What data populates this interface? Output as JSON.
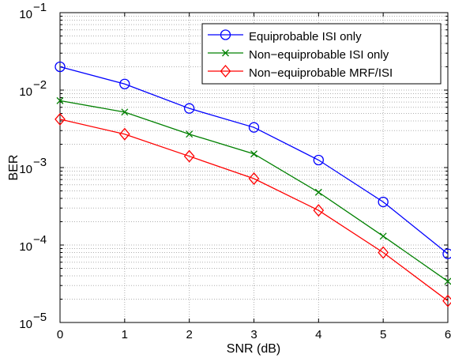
{
  "chart_data": {
    "type": "line",
    "title": "",
    "xlabel": "SNR (dB)",
    "ylabel": "BER",
    "xlim": [
      0,
      6
    ],
    "ylim": [
      1e-05,
      0.1
    ],
    "yscale": "log",
    "x_ticks": [
      "0",
      "1",
      "2",
      "3",
      "4",
      "5",
      "6"
    ],
    "y_ticks": [
      {
        "base": "10",
        "exp": "−5"
      },
      {
        "base": "10",
        "exp": "−4"
      },
      {
        "base": "10",
        "exp": "−3"
      },
      {
        "base": "10",
        "exp": "−2"
      },
      {
        "base": "10",
        "exp": "−1"
      }
    ],
    "grid": true,
    "grid_style": "dotted",
    "legend_position": "top-right",
    "x": [
      0,
      1,
      2,
      3,
      4,
      5,
      6
    ],
    "series": [
      {
        "name": "Equiprobable ISI only",
        "color": "#0000ff",
        "marker": "circle",
        "values": [
          0.02,
          0.012,
          0.0058,
          0.0033,
          0.00125,
          0.00036,
          7.7e-05
        ]
      },
      {
        "name": "Non−equiprobable ISI only",
        "color": "#008000",
        "marker": "x",
        "values": [
          0.0073,
          0.0052,
          0.0027,
          0.0015,
          0.00048,
          0.00013,
          3.4e-05
        ]
      },
      {
        "name": "Non−equiprobable MRF/ISI",
        "color": "#ff0000",
        "marker": "diamond",
        "values": [
          0.0042,
          0.0027,
          0.0014,
          0.00072,
          0.00028,
          8e-05,
          1.9e-05
        ]
      }
    ]
  }
}
